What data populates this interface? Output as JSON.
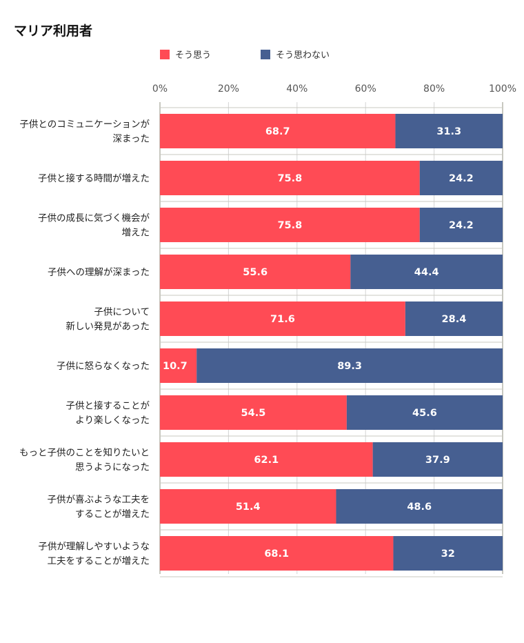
{
  "title": "マリア利用者",
  "chart_data": {
    "type": "bar",
    "orientation": "horizontal",
    "stacked": true,
    "title": "マリア利用者",
    "xlabel": "",
    "ylabel": "",
    "xlim": [
      0,
      100
    ],
    "x_ticks": [
      "0%",
      "20%",
      "40%",
      "60%",
      "80%",
      "100%"
    ],
    "grid": true,
    "legend_position": "top",
    "categories": [
      [
        "子供とのコミュニケーションが",
        "深まった"
      ],
      [
        "子供と接する時間が増えた"
      ],
      [
        "子供の成長に気づく機会が",
        "増えた"
      ],
      [
        "子供への理解が深まった"
      ],
      [
        "子供について",
        "新しい発見があった"
      ],
      [
        "子供に怒らなくなった"
      ],
      [
        "子供と接することが",
        "より楽しくなった"
      ],
      [
        "もっと子供のことを知りたいと",
        "思うようになった"
      ],
      [
        "子供が喜ぶような工夫を",
        "することが増えた"
      ],
      [
        "子供が理解しやすいような",
        "工夫をすることが増えた"
      ]
    ],
    "series": [
      {
        "name": "そう思う",
        "color": "#ff4b55",
        "values": [
          68.7,
          75.8,
          75.8,
          55.6,
          71.6,
          10.7,
          54.5,
          62.1,
          51.4,
          68.1
        ],
        "labels": [
          "68.7",
          "75.8",
          "75.8",
          "55.6",
          "71.6",
          "10.7",
          "54.5",
          "62.1",
          "51.4",
          "68.1"
        ]
      },
      {
        "name": "そう思わない",
        "color": "#465f91",
        "values": [
          31.3,
          24.2,
          24.2,
          44.4,
          28.4,
          89.3,
          45.6,
          37.9,
          48.6,
          32
        ],
        "labels": [
          "31.3",
          "24.2",
          "24.2",
          "44.4",
          "28.4",
          "89.3",
          "45.6",
          "37.9",
          "48.6",
          "32"
        ]
      }
    ]
  }
}
